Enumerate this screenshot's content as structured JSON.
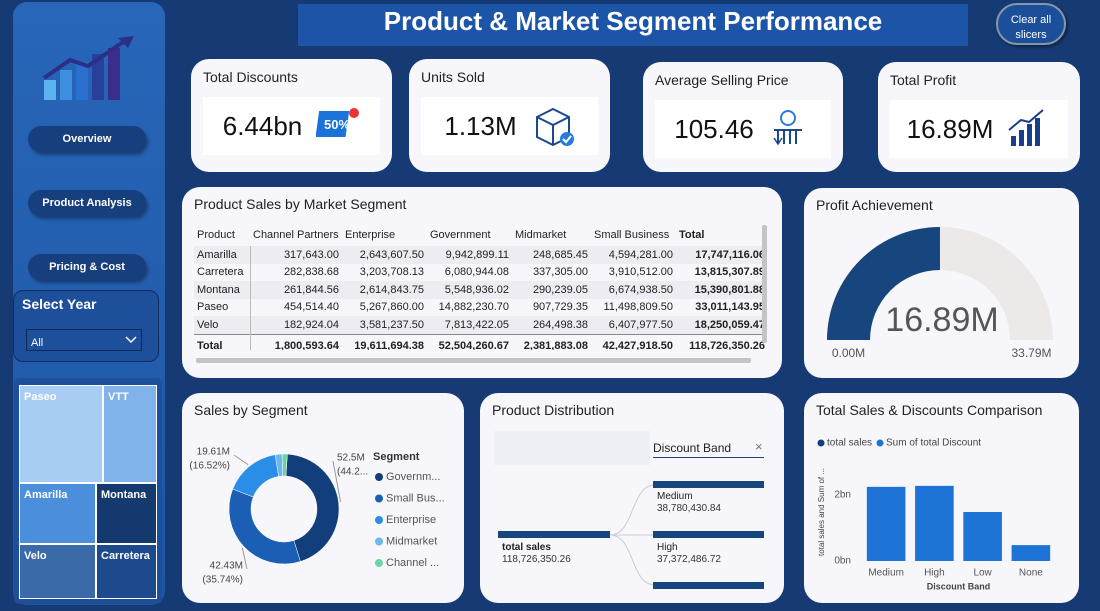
{
  "header": {
    "title": "Product & Market Segment Performance",
    "clear_button": [
      "Clear all",
      "slicers"
    ]
  },
  "nav": {
    "buttons": [
      "Overview",
      "Product Analysis",
      "Pricing & Cost"
    ],
    "year_filter": {
      "label": "Select Year",
      "selected": "All"
    },
    "treemap": [
      "Paseo",
      "VTT",
      "Amarilla",
      "Montana",
      "Velo",
      "Carretera"
    ]
  },
  "kpis": [
    {
      "title": "Total Discounts",
      "value": "6.44bn"
    },
    {
      "title": "Units Sold",
      "value": "1.13M"
    },
    {
      "title": "Average Selling Price",
      "value": "105.46"
    },
    {
      "title": "Total Profit",
      "value": "16.89M"
    }
  ],
  "table": {
    "title": "Product Sales by Market Segment",
    "columns": [
      "Product",
      "Channel Partners",
      "Enterprise",
      "Government",
      "Midmarket",
      "Small Business",
      "Total"
    ],
    "rows": [
      [
        "Amarilla",
        "317,643.00",
        "2,643,607.50",
        "9,942,899.11",
        "248,685.45",
        "4,594,281.00",
        "17,747,116.06"
      ],
      [
        "Carretera",
        "282,838.68",
        "3,203,708.13",
        "6,080,944.08",
        "337,305.00",
        "3,910,512.00",
        "13,815,307.89"
      ],
      [
        "Montana",
        "261,844.56",
        "2,614,843.75",
        "5,548,936.02",
        "290,239.05",
        "6,674,938.50",
        "15,390,801.88"
      ],
      [
        "Paseo",
        "454,514.40",
        "5,267,860.00",
        "14,882,230.70",
        "907,729.35",
        "11,498,809.50",
        "33,011,143.95"
      ],
      [
        "Velo",
        "182,924.04",
        "3,581,237.50",
        "7,813,422.05",
        "264,498.38",
        "6,407,977.50",
        "18,250,059.47"
      ]
    ],
    "total": [
      "Total",
      "1,800,593.64",
      "19,611,694.38",
      "52,504,260.67",
      "2,381,883.08",
      "42,427,918.50",
      "118,726,350.26"
    ]
  },
  "product_distribution": {
    "title": "Product Distribution",
    "root": {
      "label": "total sales",
      "value": "118,726,350.26"
    },
    "level": "Discount Band",
    "nodes": [
      {
        "label": "Medium",
        "value": "38,780,430.84"
      },
      {
        "label": "High",
        "value": "37,372,486.72"
      }
    ]
  },
  "chart_data": [
    {
      "type": "pie",
      "title": "Sales by Segment",
      "legend_title": "Segment",
      "categories": [
        "Governm...",
        "Small Bus...",
        "Enterprise",
        "Midmarket",
        "Channel ..."
      ],
      "values": [
        52.5,
        42.43,
        19.61,
        2.38,
        1.8
      ],
      "value_labels": [
        "52.5M",
        "42.43M",
        "19.61M",
        null,
        null
      ],
      "pct_labels": [
        "(44.2...",
        "(35.74%)",
        "(16.52%)",
        null,
        null
      ],
      "colors": [
        "#123f7c",
        "#1b5fb4",
        "#2a8ee8",
        "#6cb7ee",
        "#6ed3a8"
      ]
    },
    {
      "type": "gauge",
      "title": "Profit Achievement",
      "value": 16.89,
      "value_label": "16.89M",
      "ylim": [
        0,
        33.79
      ],
      "yticks": [
        {
          "value": 0,
          "label": "0.00M"
        },
        {
          "value": 33.79,
          "label": "33.79M"
        }
      ],
      "color": "#17467f",
      "track_color": "#ede9e9"
    },
    {
      "type": "bar",
      "title": "Total Sales & Discounts Comparison",
      "legend": [
        {
          "name": "total sales",
          "color": "#123f7c"
        },
        {
          "name": "Sum of total Discount",
          "color": "#1e74d6"
        }
      ],
      "categories": [
        "Medium",
        "High",
        "Low",
        "None"
      ],
      "values": [
        2.24,
        2.27,
        1.48,
        0.48
      ],
      "color": "#1e74d6",
      "ylim": [
        0,
        2.9
      ],
      "yticks": [
        {
          "value": 0,
          "label": "0bn"
        },
        {
          "value": 2,
          "label": "2bn"
        }
      ],
      "y_label": "total sales and Sum of ...",
      "x_label": "Discount Band"
    }
  ]
}
